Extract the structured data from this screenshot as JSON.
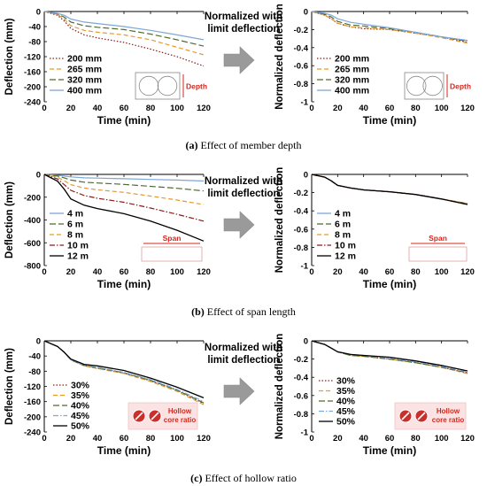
{
  "captions": [
    {
      "letter": "(a)",
      "text": "Effect of member depth"
    },
    {
      "letter": "(b)",
      "text": "Effect of span length"
    },
    {
      "letter": "(c)",
      "text": "Effect of hollow ratio"
    }
  ],
  "arrow_text": "Normalized with limit deflection",
  "chart_data": [
    {
      "id": "a-left",
      "type": "line",
      "xlabel": "Time (min)",
      "ylabel": "Deflection (mm)",
      "xlim": [
        0,
        120
      ],
      "ylim": [
        -240,
        0
      ],
      "xticks": [
        0,
        20,
        40,
        60,
        80,
        100,
        120
      ],
      "yticks": [
        0,
        -40,
        -80,
        -120,
        -160,
        -200,
        -240
      ],
      "x": [
        0,
        10,
        15,
        20,
        30,
        40,
        60,
        80,
        100,
        120
      ],
      "series": [
        {
          "name": "200 mm",
          "color": "#8b1a1a",
          "dash": "dot",
          "values": [
            0,
            -10,
            -25,
            -45,
            -62,
            -70,
            -82,
            -100,
            -120,
            -145
          ]
        },
        {
          "name": "265 mm",
          "color": "#e39a2e",
          "dash": "dash",
          "values": [
            0,
            -8,
            -20,
            -38,
            -50,
            -55,
            -62,
            -75,
            -95,
            -115
          ]
        },
        {
          "name": "320 mm",
          "color": "#4e6b2e",
          "dash": "dashlong",
          "values": [
            0,
            -6,
            -15,
            -28,
            -38,
            -42,
            -48,
            -60,
            -75,
            -92
          ]
        },
        {
          "name": "400 mm",
          "color": "#7da6d9",
          "dash": "solid",
          "values": [
            0,
            -5,
            -10,
            -20,
            -28,
            -32,
            -40,
            -50,
            -62,
            -75
          ]
        }
      ],
      "inset": {
        "type": "depth",
        "label": "Depth"
      }
    },
    {
      "id": "a-right",
      "type": "line",
      "xlabel": "Time (min)",
      "ylabel": "Normalized deflection",
      "xlim": [
        0,
        120
      ],
      "ylim": [
        -1,
        0
      ],
      "xticks": [
        0,
        20,
        40,
        60,
        80,
        100,
        120
      ],
      "yticks": [
        0,
        -0.2,
        -0.4,
        -0.6,
        -0.8,
        -1
      ],
      "x": [
        0,
        10,
        15,
        20,
        30,
        40,
        60,
        80,
        100,
        120
      ],
      "series": [
        {
          "name": "200 mm",
          "color": "#8b1a1a",
          "dash": "dot",
          "values": [
            0,
            -0.04,
            -0.08,
            -0.13,
            -0.17,
            -0.19,
            -0.2,
            -0.24,
            -0.28,
            -0.34
          ]
        },
        {
          "name": "265 mm",
          "color": "#e39a2e",
          "dash": "dash",
          "values": [
            0,
            -0.04,
            -0.08,
            -0.13,
            -0.17,
            -0.18,
            -0.2,
            -0.24,
            -0.29,
            -0.35
          ]
        },
        {
          "name": "320 mm",
          "color": "#4e6b2e",
          "dash": "dashlong",
          "values": [
            0,
            -0.03,
            -0.06,
            -0.11,
            -0.15,
            -0.16,
            -0.19,
            -0.23,
            -0.28,
            -0.33
          ]
        },
        {
          "name": "400 mm",
          "color": "#7da6d9",
          "dash": "solid",
          "values": [
            0,
            -0.02,
            -0.04,
            -0.08,
            -0.12,
            -0.14,
            -0.18,
            -0.23,
            -0.28,
            -0.32
          ]
        }
      ],
      "inset": {
        "type": "depth",
        "label": "Depth"
      }
    },
    {
      "id": "b-left",
      "type": "line",
      "xlabel": "Time (min)",
      "ylabel": "Deflection (mm)",
      "xlim": [
        0,
        120
      ],
      "ylim": [
        -800,
        0
      ],
      "xticks": [
        0,
        20,
        40,
        60,
        80,
        100,
        120
      ],
      "yticks": [
        0,
        -200,
        -400,
        -600,
        -800
      ],
      "x": [
        0,
        10,
        15,
        20,
        30,
        40,
        60,
        80,
        100,
        120
      ],
      "series": [
        {
          "name": "4 m",
          "color": "#7da6d9",
          "dash": "solid",
          "values": [
            0,
            -8,
            -15,
            -22,
            -30,
            -33,
            -38,
            -44,
            -50,
            -58
          ]
        },
        {
          "name": "6 m",
          "color": "#4e6b2e",
          "dash": "dashlong",
          "values": [
            0,
            -15,
            -30,
            -50,
            -68,
            -75,
            -88,
            -105,
            -122,
            -145
          ]
        },
        {
          "name": "8 m",
          "color": "#e39a2e",
          "dash": "dash",
          "values": [
            0,
            -25,
            -55,
            -90,
            -120,
            -135,
            -158,
            -190,
            -225,
            -265
          ]
        },
        {
          "name": "10 m",
          "color": "#8b1a1a",
          "dash": "dashdot",
          "values": [
            0,
            -40,
            -90,
            -140,
            -185,
            -210,
            -245,
            -295,
            -350,
            -410
          ]
        },
        {
          "name": "12 m",
          "color": "#000000",
          "dash": "solid",
          "values": [
            0,
            -60,
            -130,
            -215,
            -270,
            -300,
            -345,
            -410,
            -490,
            -585
          ]
        }
      ],
      "inset": {
        "type": "span",
        "label": "Span"
      }
    },
    {
      "id": "b-right",
      "type": "line",
      "xlabel": "Time (min)",
      "ylabel": "Normalized deflection",
      "xlim": [
        0,
        120
      ],
      "ylim": [
        -1,
        0
      ],
      "xticks": [
        0,
        20,
        40,
        60,
        80,
        100,
        120
      ],
      "yticks": [
        0,
        -0.2,
        -0.4,
        -0.6,
        -0.8,
        -1
      ],
      "x": [
        0,
        10,
        15,
        20,
        30,
        40,
        60,
        80,
        100,
        120
      ],
      "series": [
        {
          "name": "4 m",
          "color": "#7da6d9",
          "dash": "solid",
          "values": [
            0,
            -0.03,
            -0.07,
            -0.12,
            -0.15,
            -0.17,
            -0.19,
            -0.22,
            -0.27,
            -0.32
          ]
        },
        {
          "name": "6 m",
          "color": "#4e6b2e",
          "dash": "dashlong",
          "values": [
            0,
            -0.03,
            -0.07,
            -0.12,
            -0.15,
            -0.17,
            -0.19,
            -0.22,
            -0.27,
            -0.32
          ]
        },
        {
          "name": "8 m",
          "color": "#e39a2e",
          "dash": "dash",
          "values": [
            0,
            -0.03,
            -0.07,
            -0.12,
            -0.15,
            -0.17,
            -0.19,
            -0.22,
            -0.27,
            -0.32
          ]
        },
        {
          "name": "10 m",
          "color": "#8b1a1a",
          "dash": "dashdot",
          "values": [
            0,
            -0.03,
            -0.07,
            -0.12,
            -0.15,
            -0.17,
            -0.19,
            -0.22,
            -0.27,
            -0.33
          ]
        },
        {
          "name": "12 m",
          "color": "#000000",
          "dash": "solid",
          "values": [
            0,
            -0.03,
            -0.07,
            -0.12,
            -0.15,
            -0.17,
            -0.19,
            -0.22,
            -0.27,
            -0.33
          ]
        }
      ],
      "inset": {
        "type": "span",
        "label": "Span"
      }
    },
    {
      "id": "c-left",
      "type": "line",
      "xlabel": "Time (min)",
      "ylabel": "Deflection (mm)",
      "xlim": [
        0,
        120
      ],
      "ylim": [
        -240,
        0
      ],
      "xticks": [
        0,
        20,
        40,
        60,
        80,
        100,
        120
      ],
      "yticks": [
        0,
        -40,
        -80,
        -120,
        -160,
        -200,
        -240
      ],
      "x": [
        0,
        10,
        15,
        20,
        30,
        40,
        60,
        80,
        100,
        120
      ],
      "series": [
        {
          "name": "30%",
          "color": "#8b1a1a",
          "dash": "dot",
          "values": [
            0,
            -15,
            -30,
            -50,
            -65,
            -72,
            -85,
            -105,
            -130,
            -165
          ]
        },
        {
          "name": "35%",
          "color": "#e39a2e",
          "dash": "dash",
          "values": [
            0,
            -15,
            -30,
            -50,
            -66,
            -73,
            -86,
            -107,
            -133,
            -168
          ]
        },
        {
          "name": "40%",
          "color": "#4e6b2e",
          "dash": "dashlong",
          "values": [
            0,
            -15,
            -30,
            -50,
            -65,
            -71,
            -84,
            -104,
            -130,
            -163
          ]
        },
        {
          "name": "45%",
          "color": "#7da6d9",
          "dash": "dashdot",
          "values": [
            0,
            -15,
            -30,
            -50,
            -64,
            -70,
            -83,
            -102,
            -128,
            -160
          ]
        },
        {
          "name": "50%",
          "color": "#000000",
          "dash": "solid",
          "values": [
            0,
            -15,
            -30,
            -48,
            -62,
            -66,
            -78,
            -98,
            -122,
            -150
          ]
        }
      ],
      "inset": {
        "type": "hollow",
        "label": "Hollow core ratio"
      }
    },
    {
      "id": "c-right",
      "type": "line",
      "xlabel": "Time (min)",
      "ylabel": "Normalized deflection",
      "xlim": [
        0,
        120
      ],
      "ylim": [
        -1,
        0
      ],
      "xticks": [
        0,
        20,
        40,
        60,
        80,
        100,
        120
      ],
      "yticks": [
        0,
        -0.2,
        -0.4,
        -0.6,
        -0.8,
        -1
      ],
      "x": [
        0,
        10,
        15,
        20,
        30,
        40,
        60,
        80,
        100,
        120
      ],
      "series": [
        {
          "name": "30%",
          "color": "#8b1a1a",
          "dash": "dot",
          "values": [
            0,
            -0.04,
            -0.08,
            -0.12,
            -0.16,
            -0.17,
            -0.2,
            -0.24,
            -0.29,
            -0.35
          ]
        },
        {
          "name": "35%",
          "color": "#e39a2e",
          "dash": "dash",
          "values": [
            0,
            -0.04,
            -0.08,
            -0.12,
            -0.16,
            -0.17,
            -0.2,
            -0.24,
            -0.29,
            -0.36
          ]
        },
        {
          "name": "40%",
          "color": "#4e6b2e",
          "dash": "dashlong",
          "values": [
            0,
            -0.04,
            -0.08,
            -0.12,
            -0.16,
            -0.17,
            -0.2,
            -0.24,
            -0.29,
            -0.35
          ]
        },
        {
          "name": "45%",
          "color": "#7da6d9",
          "dash": "dashdot",
          "values": [
            0,
            -0.04,
            -0.08,
            -0.12,
            -0.15,
            -0.16,
            -0.19,
            -0.23,
            -0.28,
            -0.34
          ]
        },
        {
          "name": "50%",
          "color": "#000000",
          "dash": "solid",
          "values": [
            0,
            -0.04,
            -0.08,
            -0.12,
            -0.15,
            -0.16,
            -0.18,
            -0.22,
            -0.27,
            -0.33
          ]
        }
      ],
      "inset": {
        "type": "hollow",
        "label": "Hollow core ratio"
      }
    }
  ]
}
